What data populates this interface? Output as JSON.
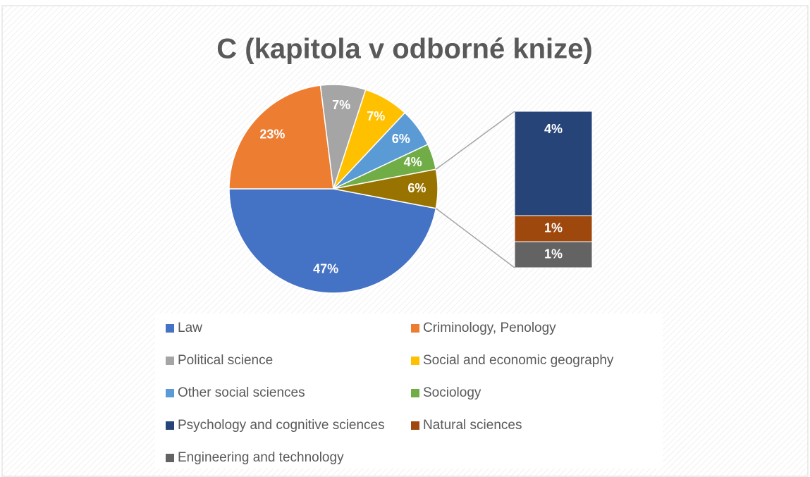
{
  "chart_data": {
    "type": "pie-of-bar",
    "title": "C (kapitola v odborné knize)",
    "categories": [
      "Law",
      "Criminology, Penology",
      "Political science",
      "Social and economic geography",
      "Other social sciences",
      "Sociology",
      "Psychology and cognitive sciences",
      "Natural sciences",
      "Engineering and technology"
    ],
    "values": [
      47,
      23,
      7,
      7,
      6,
      4,
      4,
      1,
      1
    ],
    "value_labels": [
      "47%",
      "23%",
      "7%",
      "7%",
      "6%",
      "4%",
      "4%",
      "1%",
      "1%"
    ],
    "colors": [
      "#4472c4",
      "#ed7d31",
      "#a5a5a5",
      "#ffc000",
      "#5b9bd5",
      "#70ad47",
      "#264478",
      "#9e480e",
      "#636363"
    ],
    "split_count": 3,
    "other_value": 6,
    "other_label": "6%",
    "other_color": "#997300"
  }
}
